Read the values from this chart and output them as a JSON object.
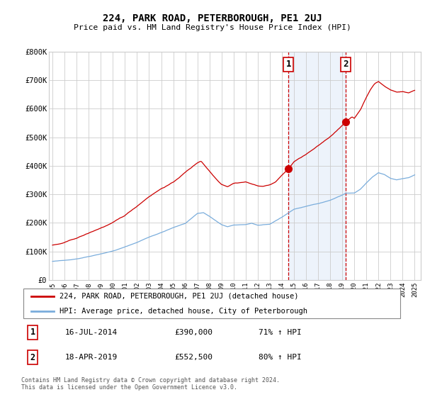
{
  "title": "224, PARK ROAD, PETERBOROUGH, PE1 2UJ",
  "subtitle": "Price paid vs. HM Land Registry's House Price Index (HPI)",
  "footer": "Contains HM Land Registry data © Crown copyright and database right 2024.\nThis data is licensed under the Open Government Licence v3.0.",
  "legend_line1": "224, PARK ROAD, PETERBOROUGH, PE1 2UJ (detached house)",
  "legend_line2": "HPI: Average price, detached house, City of Peterborough",
  "annotation1_label": "1",
  "annotation1_date": "16-JUL-2014",
  "annotation1_price": "£390,000",
  "annotation1_hpi": "71% ↑ HPI",
  "annotation2_label": "2",
  "annotation2_date": "18-APR-2019",
  "annotation2_price": "£552,500",
  "annotation2_hpi": "80% ↑ HPI",
  "sale1_x": 2014.54,
  "sale1_y": 390000,
  "sale2_x": 2019.3,
  "sale2_y": 552500,
  "ylim_min": 0,
  "ylim_max": 800000,
  "xlim_min": 1994.7,
  "xlim_max": 2025.5,
  "hpi_color": "#7aaddc",
  "price_color": "#cc0000",
  "grid_color": "#cccccc",
  "background_color": "#ffffff",
  "shade_color": "#ccdff5",
  "yticks": [
    0,
    100000,
    200000,
    300000,
    400000,
    500000,
    600000,
    700000,
    800000
  ],
  "ytick_labels": [
    "£0",
    "£100K",
    "£200K",
    "£300K",
    "£400K",
    "£500K",
    "£600K",
    "£700K",
    "£800K"
  ],
  "xticks": [
    1995,
    1996,
    1997,
    1998,
    1999,
    2000,
    2001,
    2002,
    2003,
    2004,
    2005,
    2006,
    2007,
    2008,
    2009,
    2010,
    2011,
    2012,
    2013,
    2014,
    2015,
    2016,
    2017,
    2018,
    2019,
    2020,
    2021,
    2022,
    2023,
    2024,
    2025
  ]
}
